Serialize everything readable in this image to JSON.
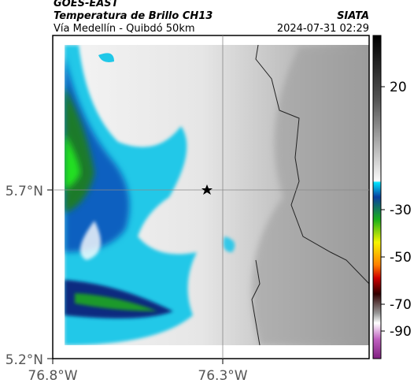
{
  "header": {
    "satellite": "GOES-EAST",
    "product": "Temperatura de Brillo CH13",
    "organization": "SIATA",
    "region": "Vía Medellín - Quibdó 50km",
    "timestamp": "2024-07-31 02:29"
  },
  "map": {
    "lat_labels": [
      "5.7°N",
      "5.2°N"
    ],
    "lon_labels": [
      "76.8°W",
      "76.3°W"
    ]
  },
  "colorbar": {
    "ticks": [
      20,
      -30,
      -50,
      -70,
      -90
    ]
  }
}
